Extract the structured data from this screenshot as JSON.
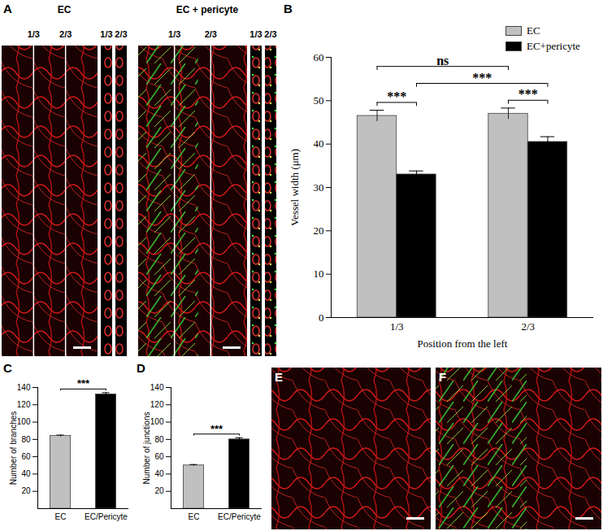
{
  "panels": [
    {
      "label": "A",
      "images": [
        {
          "title": "EC",
          "marks": [
            "1/3",
            "2/3"
          ],
          "strips": [
            "1/3",
            "2/3"
          ]
        },
        {
          "title": "EC + pericyte",
          "marks": [
            "1/3",
            "2/3"
          ],
          "strips": [
            "1/3",
            "2/3"
          ]
        }
      ]
    },
    {
      "label": "E"
    },
    {
      "label": "F"
    }
  ],
  "chart_data": [
    {
      "panel": "B",
      "type": "bar",
      "categories": [
        "1/3",
        "2/3"
      ],
      "series": [
        {
          "name": "EC",
          "color": "#c0c0c0",
          "values": [
            46.5,
            47
          ],
          "errors": [
            1.3,
            1.3
          ]
        },
        {
          "name": "EC+pericyte",
          "color": "#000000",
          "values": [
            33,
            40.5
          ],
          "errors": [
            0.8,
            1.2
          ]
        }
      ],
      "x_label": "Position from the left",
      "y_label": "Vessel width (μm)",
      "ylim": [
        0,
        60
      ],
      "yticks": [
        0,
        10,
        20,
        30,
        40,
        50,
        60
      ],
      "legend": "top-right",
      "significance": [
        {
          "text": "***",
          "from": {
            "category": "1/3",
            "series": "EC"
          },
          "to": {
            "category": "1/3",
            "series": "EC+pericyte"
          }
        },
        {
          "text": "***",
          "from": {
            "category": "2/3",
            "series": "EC"
          },
          "to": {
            "category": "2/3",
            "series": "EC+pericyte"
          }
        },
        {
          "text": "***",
          "from": {
            "category": "1/3",
            "series": "EC+pericyte"
          },
          "to": {
            "category": "2/3",
            "series": "EC+pericyte"
          }
        },
        {
          "text": "ns",
          "from": {
            "category": "1/3",
            "series": "EC"
          },
          "to": {
            "category": "2/3",
            "series": "EC"
          }
        }
      ]
    },
    {
      "panel": "C",
      "type": "bar",
      "categories": [
        "EC",
        "EC/Pericyte"
      ],
      "values": [
        84,
        132
      ],
      "errors": [
        1,
        2
      ],
      "colors": [
        "#c0c0c0",
        "#000000"
      ],
      "y_label": "Number of branches",
      "ylim": [
        0,
        140
      ],
      "yticks": [
        20,
        40,
        60,
        80,
        100,
        120,
        140
      ],
      "significance": [
        {
          "text": "***",
          "from": {
            "category": "EC"
          },
          "to": {
            "category": "EC/Pericyte"
          }
        }
      ]
    },
    {
      "panel": "D",
      "type": "bar",
      "categories": [
        "EC",
        "EC/Pericyte"
      ],
      "values": [
        50,
        80
      ],
      "errors": [
        1,
        2
      ],
      "colors": [
        "#c0c0c0",
        "#000000"
      ],
      "y_label": "Number of junctions",
      "ylim": [
        0,
        140
      ],
      "yticks": [
        20,
        40,
        60,
        80,
        100,
        120,
        140
      ],
      "significance": [
        {
          "text": "***",
          "from": {
            "category": "EC"
          },
          "to": {
            "category": "EC/Pericyte"
          }
        }
      ]
    }
  ]
}
